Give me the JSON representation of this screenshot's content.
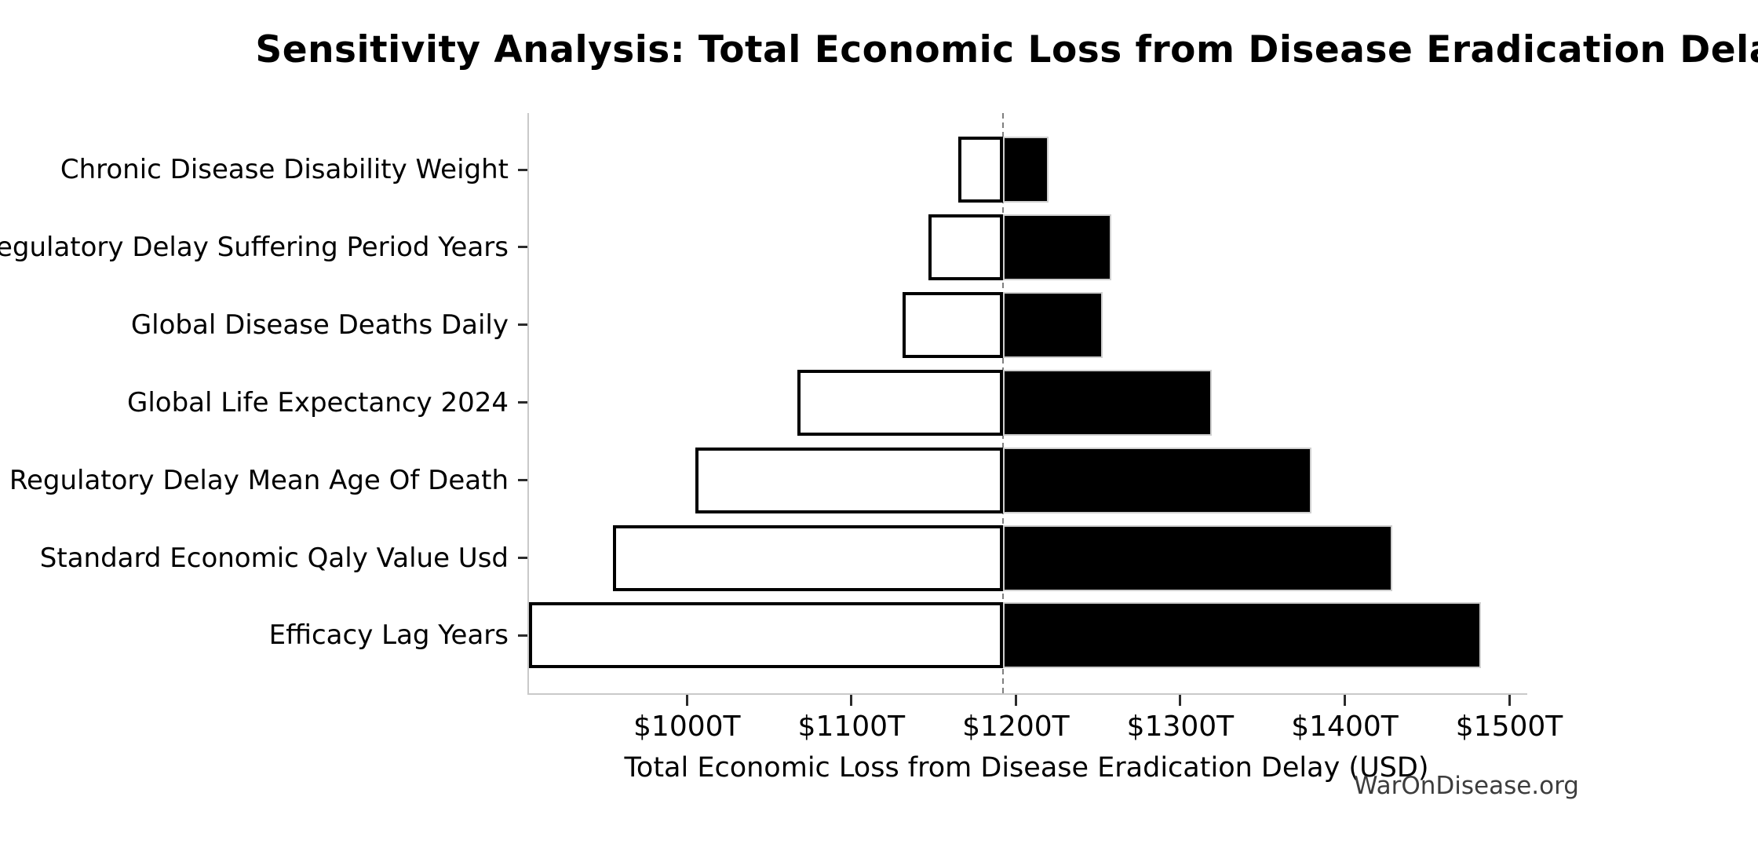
{
  "watermark": "WarOnDisease.org",
  "chart_data": {
    "type": "bar",
    "subtype": "tornado-sensitivity",
    "orientation": "horizontal",
    "title": "Sensitivity Analysis: Total Economic Loss from Disease Eradication Delay",
    "xlabel": "Total Economic Loss from Disease Eradication Delay (USD)",
    "unit": "trillions of USD",
    "baseline_value": 1191,
    "xlim": [
      903,
      1510
    ],
    "x_tick_values": [
      1000,
      1100,
      1200,
      1300,
      1400,
      1500
    ],
    "x_tick_labels": [
      "$1000T",
      "$1100T",
      "$1200T",
      "$1300T",
      "$1400T",
      "$1500T"
    ],
    "categories": [
      "Chronic Disease Disability Weight",
      "Regulatory Delay Suffering Period Years",
      "Global Disease Deaths Daily",
      "Global Life Expectancy 2024",
      "Regulatory Delay Mean Age Of Death",
      "Standard Economic Qaly Value Usd",
      "Efficacy Lag Years"
    ],
    "series": [
      {
        "name": "low",
        "values": [
          1164,
          1146,
          1130,
          1066,
          1004,
          954,
          903
        ]
      },
      {
        "name": "high",
        "values": [
          1219,
          1257,
          1252,
          1318,
          1379,
          1428,
          1482
        ]
      }
    ],
    "grid": false,
    "legend": null,
    "styles": {
      "low_bar_fill": "#ffffff",
      "low_bar_border": "#000000",
      "high_bar_fill": "#000000",
      "high_bar_border": "#cfcfcf",
      "baseline_color": "#7f7f7f",
      "axis_color": "#c9c9c9",
      "tick_color": "#2b2b2b",
      "watermark_color": "#3d3d3d"
    }
  }
}
